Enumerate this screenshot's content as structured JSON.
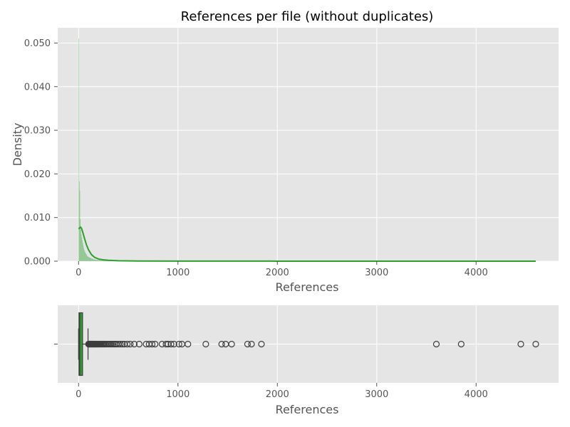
{
  "chart_data": [
    {
      "type": "histogram",
      "title": "References per file (without duplicates)",
      "xlabel": "References",
      "ylabel": "Density",
      "xlim": [
        -210,
        4830
      ],
      "ylim": [
        0,
        0.0535
      ],
      "x_ticks": [
        0,
        1000,
        2000,
        3000,
        4000
      ],
      "x_tick_labels": [
        "0",
        "1000",
        "2000",
        "3000",
        "4000"
      ],
      "y_ticks": [
        0,
        0.01,
        0.02,
        0.03,
        0.04,
        0.05
      ],
      "y_tick_labels": [
        "0.000",
        "0.010",
        "0.020",
        "0.030",
        "0.040",
        "0.050"
      ],
      "grid": true,
      "bar_color": "#2ca02c",
      "kde_color": "#2ca02c",
      "bins": [
        {
          "x0": 0,
          "x1": 5,
          "value": 0.051
        },
        {
          "x0": 5,
          "x1": 10,
          "value": 0.0183
        },
        {
          "x0": 10,
          "x1": 15,
          "value": 0.0162
        },
        {
          "x0": 15,
          "x1": 20,
          "value": 0.0096
        },
        {
          "x0": 20,
          "x1": 25,
          "value": 0.0072
        },
        {
          "x0": 25,
          "x1": 30,
          "value": 0.0062
        },
        {
          "x0": 30,
          "x1": 35,
          "value": 0.0055
        },
        {
          "x0": 35,
          "x1": 40,
          "value": 0.0048
        },
        {
          "x0": 40,
          "x1": 45,
          "value": 0.0042
        },
        {
          "x0": 45,
          "x1": 50,
          "value": 0.0036
        },
        {
          "x0": 50,
          "x1": 55,
          "value": 0.003
        },
        {
          "x0": 55,
          "x1": 60,
          "value": 0.0026
        },
        {
          "x0": 60,
          "x1": 65,
          "value": 0.0023
        },
        {
          "x0": 65,
          "x1": 70,
          "value": 0.002
        },
        {
          "x0": 70,
          "x1": 75,
          "value": 0.0018
        },
        {
          "x0": 75,
          "x1": 80,
          "value": 0.0016
        },
        {
          "x0": 80,
          "x1": 85,
          "value": 0.0014
        },
        {
          "x0": 85,
          "x1": 90,
          "value": 0.0012
        },
        {
          "x0": 90,
          "x1": 95,
          "value": 0.0011
        },
        {
          "x0": 95,
          "x1": 100,
          "value": 0.001
        },
        {
          "x0": 100,
          "x1": 110,
          "value": 0.0009
        },
        {
          "x0": 110,
          "x1": 120,
          "value": 0.0008
        },
        {
          "x0": 120,
          "x1": 130,
          "value": 0.0007
        },
        {
          "x0": 130,
          "x1": 140,
          "value": 0.0006
        },
        {
          "x0": 140,
          "x1": 150,
          "value": 0.0005
        },
        {
          "x0": 150,
          "x1": 170,
          "value": 0.0004
        },
        {
          "x0": 170,
          "x1": 190,
          "value": 0.0003
        },
        {
          "x0": 190,
          "x1": 220,
          "value": 0.00025
        },
        {
          "x0": 220,
          "x1": 260,
          "value": 0.0002
        },
        {
          "x0": 260,
          "x1": 320,
          "value": 0.00015
        },
        {
          "x0": 320,
          "x1": 400,
          "value": 0.0001
        }
      ],
      "kde": {
        "x": [
          0,
          10,
          20,
          30,
          40,
          60,
          80,
          100,
          130,
          160,
          200,
          250,
          300,
          400,
          600,
          1000,
          2000,
          3000,
          4000,
          4600
        ],
        "y": [
          0.0074,
          0.0076,
          0.0078,
          0.0075,
          0.0068,
          0.0052,
          0.0037,
          0.0026,
          0.0015,
          0.0009,
          0.0005,
          0.0003,
          0.0002,
          0.0001,
          5e-05,
          2e-05,
          1e-05,
          1e-05,
          1e-05,
          1e-05
        ]
      }
    },
    {
      "type": "boxplot",
      "xlabel": "References",
      "xlim": [
        -210,
        4830
      ],
      "x_ticks": [
        0,
        1000,
        2000,
        3000,
        4000
      ],
      "x_tick_labels": [
        "0",
        "1000",
        "2000",
        "3000",
        "4000"
      ],
      "y_tick_labels": [
        ""
      ],
      "grid": true,
      "box_color": "#2ca02c",
      "q1": 4,
      "median": 12,
      "q3": 40,
      "whisker_low": 0,
      "whisker_high": 95,
      "outliers": [
        100,
        104,
        108,
        112,
        116,
        120,
        124,
        128,
        132,
        136,
        140,
        145,
        150,
        155,
        160,
        165,
        170,
        176,
        182,
        188,
        195,
        202,
        210,
        218,
        226,
        235,
        245,
        255,
        265,
        275,
        290,
        305,
        320,
        335,
        350,
        365,
        380,
        400,
        420,
        440,
        460,
        490,
        520,
        560,
        610,
        680,
        710,
        740,
        770,
        840,
        880,
        900,
        930,
        960,
        1010,
        1040,
        1100,
        1280,
        1440,
        1480,
        1540,
        1700,
        1740,
        1840,
        3600,
        3850,
        4450,
        4600
      ]
    }
  ]
}
